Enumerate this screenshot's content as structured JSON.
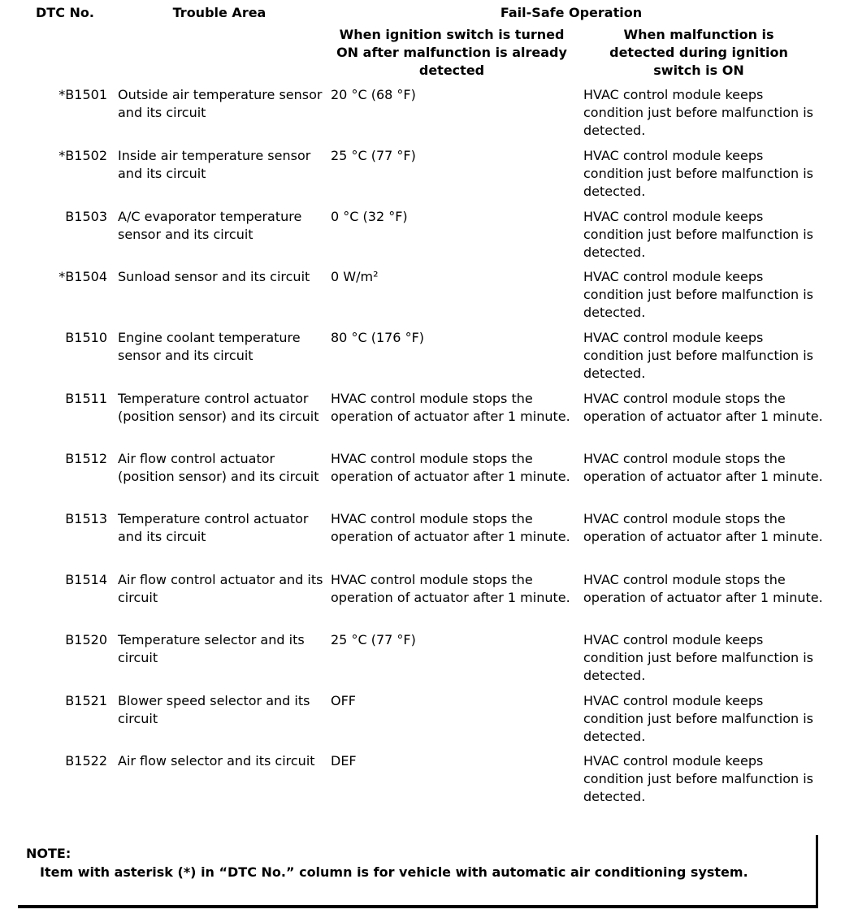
{
  "header": {
    "dtc_no": "DTC No.",
    "trouble_area": "Trouble Area",
    "fail_safe": "Fail-Safe Operation",
    "when_on_after": "When ignition switch is turned ON after malfunction is already detected",
    "when_during": "When malfunction is detected during ignition switch is ON"
  },
  "rows": [
    {
      "dtc": "*B1501",
      "area": "Outside air temperature sensor and its circuit",
      "on_after": "20 °C (68 °F)",
      "during": "HVAC control module keeps condition just before malfunction is detected."
    },
    {
      "dtc": "*B1502",
      "area": "Inside air temperature sensor and its circuit",
      "on_after": "25 °C (77 °F)",
      "during": "HVAC control module keeps condition just before malfunction is detected."
    },
    {
      "dtc": "B1503",
      "area": "A/C evaporator temperature sensor and its circuit",
      "on_after": "0 °C (32 °F)",
      "during": "HVAC control module keeps condition just before malfunction is detected."
    },
    {
      "dtc": "*B1504",
      "area": "Sunload sensor and its circuit",
      "on_after": "0 W/m²",
      "during": "HVAC control module keeps condition just before malfunction is detected."
    },
    {
      "dtc": "B1510",
      "area": "Engine coolant temperature sensor and its circuit",
      "on_after": "80 °C (176 °F)",
      "during": "HVAC control module keeps condition just before malfunction is detected."
    },
    {
      "dtc": "B1511",
      "area": "Temperature control actuator (position sensor) and its circuit",
      "on_after": "HVAC control module stops the operation of actuator after 1 minute.",
      "during": "HVAC control module stops the operation of actuator after 1 minute."
    },
    {
      "dtc": "B1512",
      "area": "Air flow control actuator (position sensor) and its circuit",
      "on_after": "HVAC control module stops the operation of actuator after 1 minute.",
      "during": "HVAC control module stops the operation of actuator after 1 minute."
    },
    {
      "dtc": "B1513",
      "area": "Temperature control actuator and its circuit",
      "on_after": "HVAC control module stops the operation of actuator after 1 minute.",
      "during": "HVAC control module stops the operation of actuator after 1 minute."
    },
    {
      "dtc": "B1514",
      "area": "Air flow control actuator and its circuit",
      "on_after": "HVAC control module stops the operation of actuator after 1 minute.",
      "during": "HVAC control module stops the operation of actuator after 1 minute."
    },
    {
      "dtc": "B1520",
      "area": "Temperature selector and its circuit",
      "on_after": "25 °C (77 °F)",
      "during": "HVAC control module keeps condition just before malfunction is detected."
    },
    {
      "dtc": "B1521",
      "area": "Blower speed selector and its circuit",
      "on_after": "OFF",
      "during": "HVAC control module keeps condition just before malfunction is detected."
    },
    {
      "dtc": "B1522",
      "area": "Air flow selector and its circuit",
      "on_after": "DEF",
      "during": "HVAC control module keeps condition just before malfunction is detected."
    }
  ],
  "note": {
    "title": "NOTE:",
    "text": "Item with asterisk (*) in “DTC No.” column is for vehicle with automatic air conditioning system."
  }
}
